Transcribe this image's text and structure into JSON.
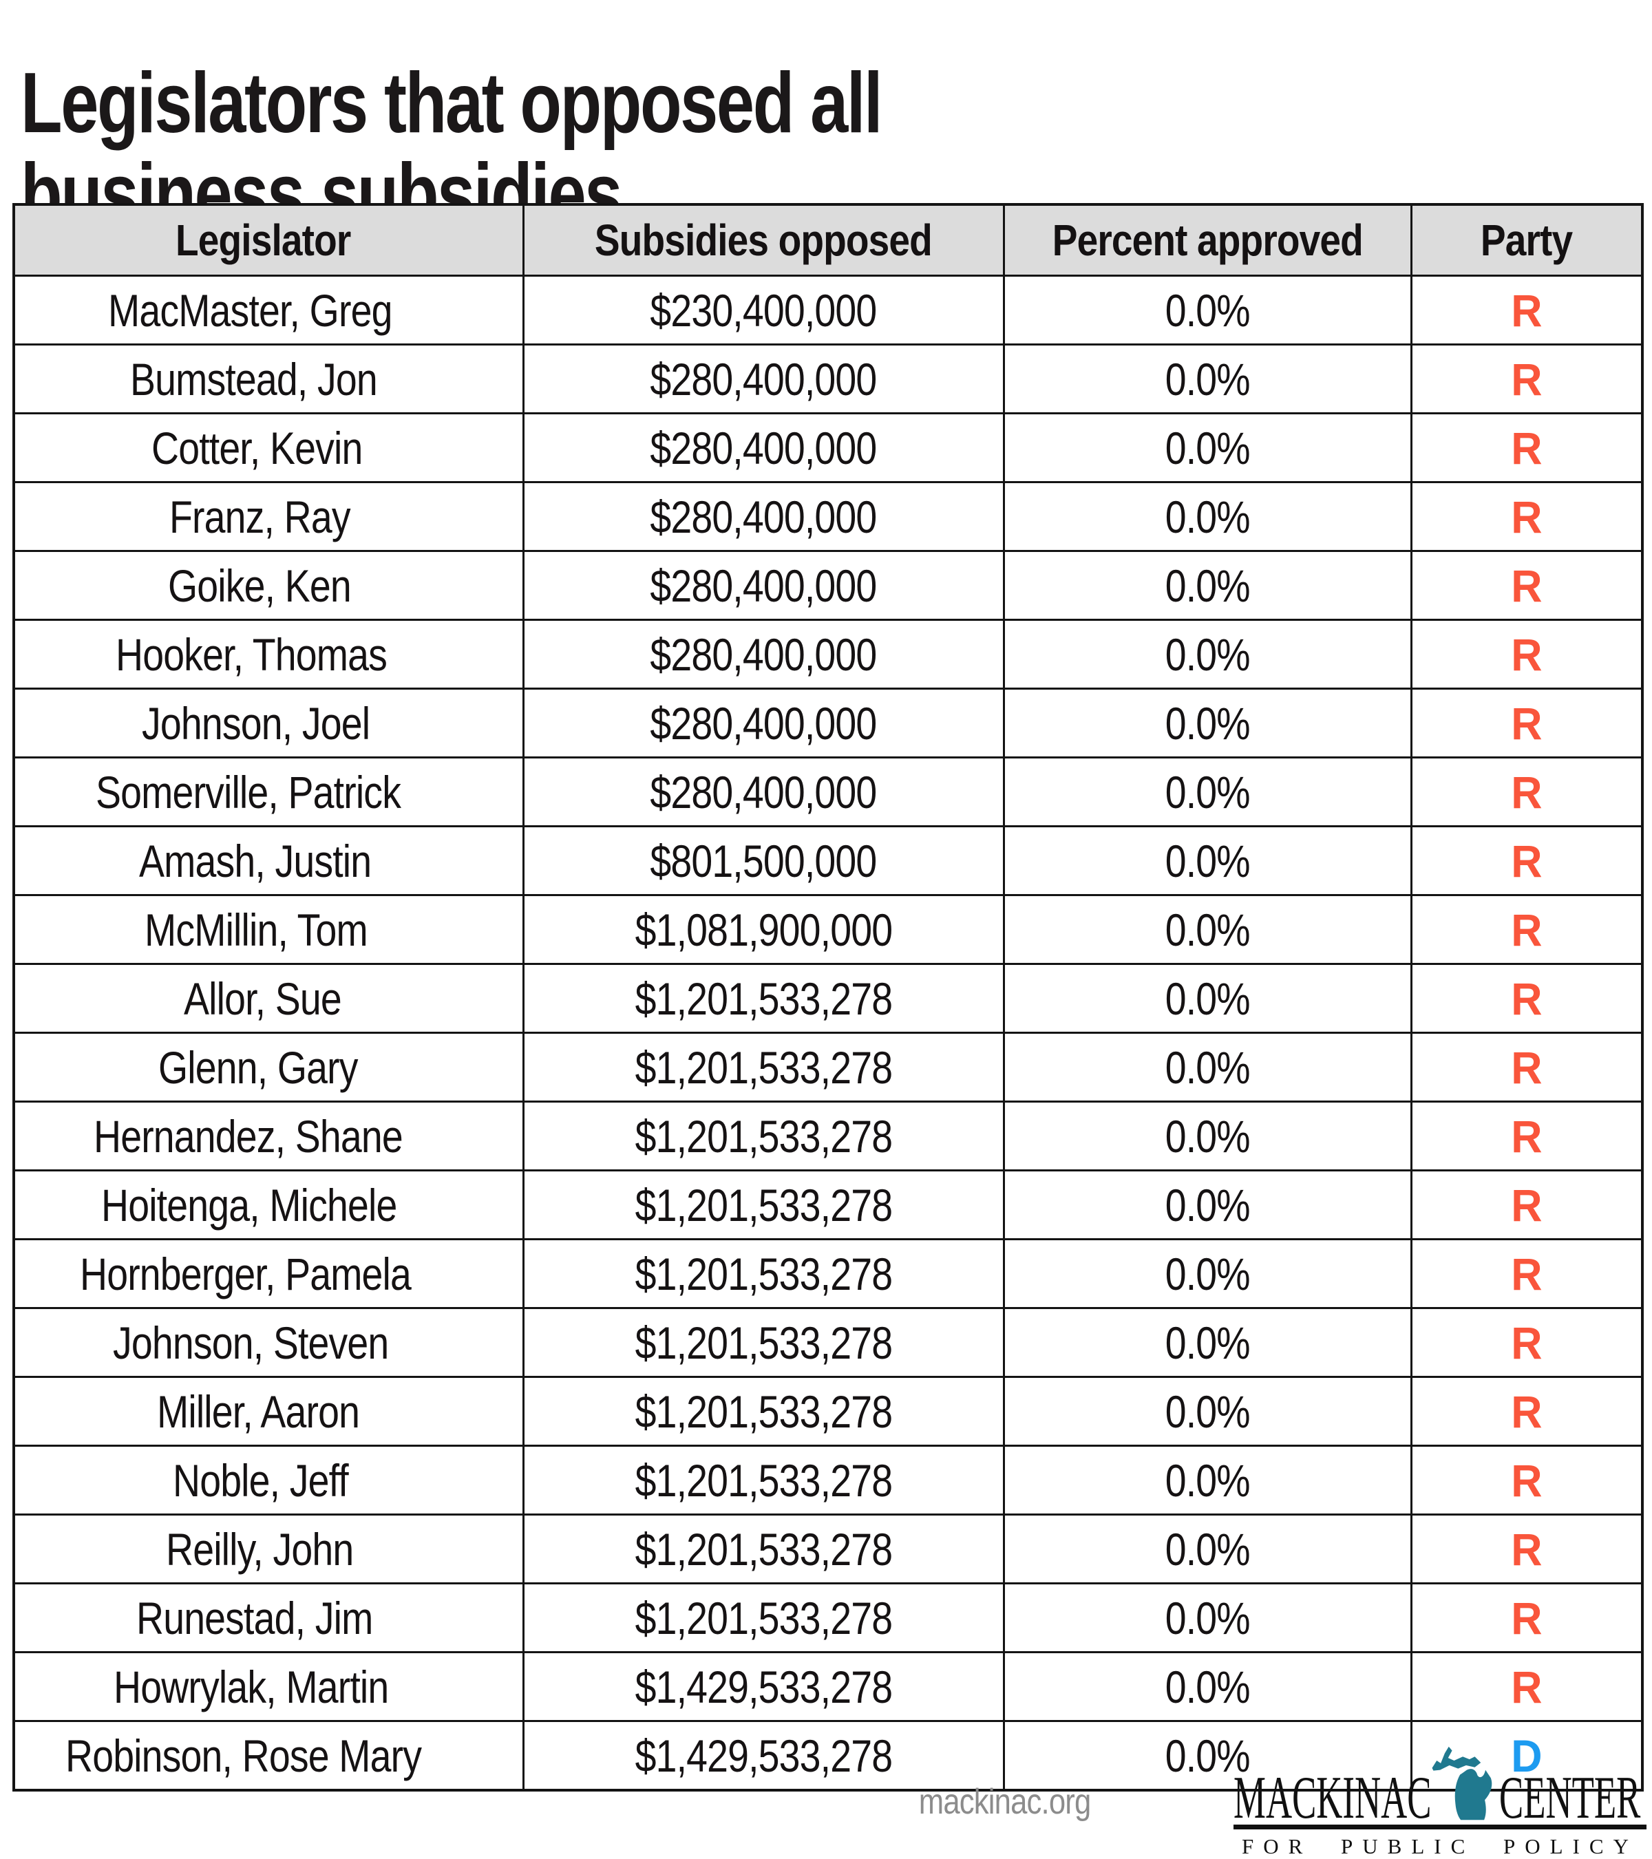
{
  "title": "Legislators that opposed all\nbusiness subsidies",
  "table": {
    "headers": [
      "Legislator",
      "Subsidies opposed",
      "Percent approved",
      "Party"
    ],
    "rows": [
      {
        "legislator": "MacMaster, Greg",
        "subsidies_opposed": "$230,400,000",
        "percent_approved": "0.0%",
        "party": "R"
      },
      {
        "legislator": "Bumstead, Jon",
        "subsidies_opposed": "$280,400,000",
        "percent_approved": "0.0%",
        "party": "R"
      },
      {
        "legislator": "Cotter, Kevin",
        "subsidies_opposed": "$280,400,000",
        "percent_approved": "0.0%",
        "party": "R"
      },
      {
        "legislator": "Franz, Ray",
        "subsidies_opposed": "$280,400,000",
        "percent_approved": "0.0%",
        "party": "R"
      },
      {
        "legislator": "Goike, Ken",
        "subsidies_opposed": "$280,400,000",
        "percent_approved": "0.0%",
        "party": "R"
      },
      {
        "legislator": "Hooker, Thomas",
        "subsidies_opposed": "$280,400,000",
        "percent_approved": "0.0%",
        "party": "R"
      },
      {
        "legislator": "Johnson, Joel",
        "subsidies_opposed": "$280,400,000",
        "percent_approved": "0.0%",
        "party": "R"
      },
      {
        "legislator": "Somerville, Patrick",
        "subsidies_opposed": "$280,400,000",
        "percent_approved": "0.0%",
        "party": "R"
      },
      {
        "legislator": "Amash, Justin",
        "subsidies_opposed": "$801,500,000",
        "percent_approved": "0.0%",
        "party": "R"
      },
      {
        "legislator": "McMillin, Tom",
        "subsidies_opposed": "$1,081,900,000",
        "percent_approved": "0.0%",
        "party": "R"
      },
      {
        "legislator": "Allor, Sue",
        "subsidies_opposed": "$1,201,533,278",
        "percent_approved": "0.0%",
        "party": "R"
      },
      {
        "legislator": "Glenn, Gary",
        "subsidies_opposed": "$1,201,533,278",
        "percent_approved": "0.0%",
        "party": "R"
      },
      {
        "legislator": "Hernandez, Shane",
        "subsidies_opposed": "$1,201,533,278",
        "percent_approved": "0.0%",
        "party": "R"
      },
      {
        "legislator": "Hoitenga, Michele",
        "subsidies_opposed": "$1,201,533,278",
        "percent_approved": "0.0%",
        "party": "R"
      },
      {
        "legislator": "Hornberger, Pamela",
        "subsidies_opposed": "$1,201,533,278",
        "percent_approved": "0.0%",
        "party": "R"
      },
      {
        "legislator": "Johnson, Steven",
        "subsidies_opposed": "$1,201,533,278",
        "percent_approved": "0.0%",
        "party": "R"
      },
      {
        "legislator": "Miller, Aaron",
        "subsidies_opposed": "$1,201,533,278",
        "percent_approved": "0.0%",
        "party": "R"
      },
      {
        "legislator": "Noble, Jeff",
        "subsidies_opposed": "$1,201,533,278",
        "percent_approved": "0.0%",
        "party": "R"
      },
      {
        "legislator": "Reilly, John",
        "subsidies_opposed": "$1,201,533,278",
        "percent_approved": "0.0%",
        "party": "R"
      },
      {
        "legislator": "Runestad, Jim",
        "subsidies_opposed": "$1,201,533,278",
        "percent_approved": "0.0%",
        "party": "R"
      },
      {
        "legislator": "Howrylak, Martin",
        "subsidies_opposed": "$1,429,533,278",
        "percent_approved": "0.0%",
        "party": "R"
      },
      {
        "legislator": "Robinson, Rose Mary",
        "subsidies_opposed": "$1,429,533,278",
        "percent_approved": "0.0%",
        "party": "D"
      }
    ]
  },
  "footer": {
    "website": "mackinac.org",
    "logo": {
      "word_left": "MACKINAC",
      "word_right": "CENTER",
      "tagline": "FOR PUBLIC POLICY",
      "icon": "michigan-state-silhouette"
    }
  },
  "colors": {
    "republican_red": "#F9553B",
    "democrat_blue": "#1D9BF0",
    "header_bg": "#DCDCDC",
    "logo_teal": "#20798F",
    "website_gray": "#8C8C8C"
  },
  "chart_data": {
    "type": "table",
    "title": "Legislators that opposed all business subsidies",
    "columns": [
      "Legislator",
      "Subsidies opposed",
      "Percent approved",
      "Party"
    ],
    "rows": [
      [
        "MacMaster, Greg",
        "$230,400,000",
        "0.0%",
        "R"
      ],
      [
        "Bumstead, Jon",
        "$280,400,000",
        "0.0%",
        "R"
      ],
      [
        "Cotter, Kevin",
        "$280,400,000",
        "0.0%",
        "R"
      ],
      [
        "Franz, Ray",
        "$280,400,000",
        "0.0%",
        "R"
      ],
      [
        "Goike, Ken",
        "$280,400,000",
        "0.0%",
        "R"
      ],
      [
        "Hooker, Thomas",
        "$280,400,000",
        "0.0%",
        "R"
      ],
      [
        "Johnson, Joel",
        "$280,400,000",
        "0.0%",
        "R"
      ],
      [
        "Somerville, Patrick",
        "$280,400,000",
        "0.0%",
        "R"
      ],
      [
        "Amash, Justin",
        "$801,500,000",
        "0.0%",
        "R"
      ],
      [
        "McMillin, Tom",
        "$1,081,900,000",
        "0.0%",
        "R"
      ],
      [
        "Allor, Sue",
        "$1,201,533,278",
        "0.0%",
        "R"
      ],
      [
        "Glenn, Gary",
        "$1,201,533,278",
        "0.0%",
        "R"
      ],
      [
        "Hernandez, Shane",
        "$1,201,533,278",
        "0.0%",
        "R"
      ],
      [
        "Hoitenga, Michele",
        "$1,201,533,278",
        "0.0%",
        "R"
      ],
      [
        "Hornberger, Pamela",
        "$1,201,533,278",
        "0.0%",
        "R"
      ],
      [
        "Johnson, Steven",
        "$1,201,533,278",
        "0.0%",
        "R"
      ],
      [
        "Miller, Aaron",
        "$1,201,533,278",
        "0.0%",
        "R"
      ],
      [
        "Noble, Jeff",
        "$1,201,533,278",
        "0.0%",
        "R"
      ],
      [
        "Reilly, John",
        "$1,201,533,278",
        "0.0%",
        "R"
      ],
      [
        "Runestad, Jim",
        "$1,201,533,278",
        "0.0%",
        "R"
      ],
      [
        "Howrylak, Martin",
        "$1,429,533,278",
        "0.0%",
        "R"
      ],
      [
        "Robinson, Rose Mary",
        "$1,429,533,278",
        "0.0%",
        "D"
      ]
    ]
  }
}
